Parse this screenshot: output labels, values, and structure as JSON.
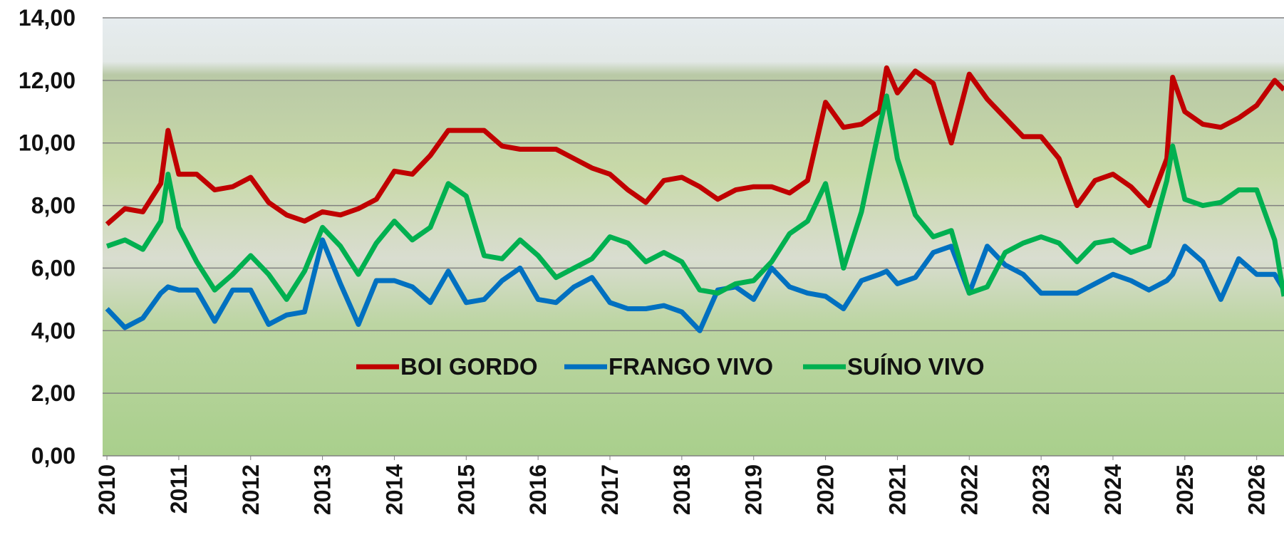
{
  "chart_data": {
    "type": "line",
    "x": [
      2010,
      2010.25,
      2010.5,
      2010.75,
      2010.85,
      2011,
      2011.25,
      2011.5,
      2011.75,
      2012,
      2012.25,
      2012.5,
      2012.75,
      2013,
      2013.25,
      2013.5,
      2013.75,
      2014,
      2014.25,
      2014.5,
      2014.75,
      2015,
      2015.25,
      2015.5,
      2015.75,
      2016,
      2016.25,
      2016.5,
      2016.75,
      2017,
      2017.25,
      2017.5,
      2017.75,
      2018,
      2018.25,
      2018.5,
      2018.75,
      2019,
      2019.25,
      2019.5,
      2019.75,
      2020,
      2020.25,
      2020.5,
      2020.75,
      2020.85,
      2021,
      2021.25,
      2021.5,
      2021.75,
      2022,
      2022.25,
      2022.5,
      2022.75,
      2023,
      2023.25,
      2023.5,
      2023.75,
      2024,
      2024.25,
      2024.5,
      2024.75,
      2024.83,
      2025,
      2025.25,
      2025.5,
      2025.75,
      2026,
      2026.25,
      2026.38
    ],
    "series": [
      {
        "name": "BOI GORDO",
        "color": "#c00000",
        "values": [
          7.4,
          7.9,
          7.8,
          8.7,
          10.4,
          9.0,
          9.0,
          8.5,
          8.6,
          8.9,
          8.1,
          7.7,
          7.5,
          7.8,
          7.7,
          7.9,
          8.2,
          9.1,
          9.0,
          9.6,
          10.4,
          10.4,
          10.4,
          9.9,
          9.8,
          9.8,
          9.8,
          9.5,
          9.2,
          9.0,
          8.5,
          8.1,
          8.8,
          8.9,
          8.6,
          8.2,
          8.5,
          8.6,
          8.6,
          8.4,
          8.8,
          11.3,
          10.5,
          10.6,
          11.0,
          12.4,
          11.6,
          12.3,
          11.9,
          10.0,
          12.2,
          11.4,
          10.8,
          10.2,
          10.2,
          9.5,
          8.0,
          8.8,
          9.0,
          8.6,
          8.0,
          9.5,
          12.1,
          11.0,
          10.6,
          10.5,
          10.8,
          11.2,
          12.0,
          11.7
        ]
      },
      {
        "name": "FRANGO VIVO",
        "color": "#0070c0",
        "values": [
          4.7,
          4.1,
          4.4,
          5.2,
          5.4,
          5.3,
          5.3,
          4.3,
          5.3,
          5.3,
          4.2,
          4.5,
          4.6,
          6.9,
          5.5,
          4.2,
          5.6,
          5.6,
          5.4,
          4.9,
          5.9,
          4.9,
          5.0,
          5.6,
          6.0,
          5.0,
          4.9,
          5.4,
          5.7,
          4.9,
          4.7,
          4.7,
          4.8,
          4.6,
          4.0,
          5.3,
          5.4,
          5.0,
          6.0,
          5.4,
          5.2,
          5.1,
          4.7,
          5.6,
          5.8,
          5.9,
          5.5,
          5.7,
          6.5,
          6.7,
          5.2,
          6.7,
          6.1,
          5.8,
          5.2,
          5.2,
          5.2,
          5.5,
          5.8,
          5.6,
          5.3,
          5.6,
          5.8,
          6.7,
          6.2,
          5.0,
          6.3,
          5.8,
          5.8,
          5.3
        ]
      },
      {
        "name": "SUÍNO VIVO",
        "color": "#00b050",
        "values": [
          6.7,
          6.9,
          6.6,
          7.5,
          9.0,
          7.3,
          6.2,
          5.3,
          5.8,
          6.4,
          5.8,
          5.0,
          5.9,
          7.3,
          6.7,
          5.8,
          6.8,
          7.5,
          6.9,
          7.3,
          8.7,
          8.3,
          6.4,
          6.3,
          6.9,
          6.4,
          5.7,
          6.0,
          6.3,
          7.0,
          6.8,
          6.2,
          6.5,
          6.2,
          5.3,
          5.2,
          5.5,
          5.6,
          6.2,
          7.1,
          7.5,
          8.7,
          6.0,
          7.8,
          10.5,
          11.5,
          9.5,
          7.7,
          7.0,
          7.2,
          5.2,
          5.4,
          6.5,
          6.8,
          7.0,
          6.8,
          6.2,
          6.8,
          6.9,
          6.5,
          6.7,
          8.8,
          9.9,
          8.2,
          8.0,
          8.1,
          8.5,
          8.5,
          6.9,
          5.1
        ]
      }
    ],
    "xlim": [
      2009.94,
      2026.38
    ],
    "xticks": [
      2010,
      2011,
      2012,
      2013,
      2014,
      2015,
      2016,
      2017,
      2018,
      2019,
      2020,
      2021,
      2022,
      2023,
      2024,
      2025,
      2026
    ],
    "ylim": [
      0,
      14
    ],
    "yticks": [
      {
        "value": 0,
        "label": "0,00"
      },
      {
        "value": 2,
        "label": "2,00"
      },
      {
        "value": 4,
        "label": "4,00"
      },
      {
        "value": 6,
        "label": "6,00"
      },
      {
        "value": 8,
        "label": "8,00"
      },
      {
        "value": 10,
        "label": "10,00"
      },
      {
        "value": 12,
        "label": "12,00"
      },
      {
        "value": 14,
        "label": "14,00"
      }
    ],
    "grid": true
  }
}
